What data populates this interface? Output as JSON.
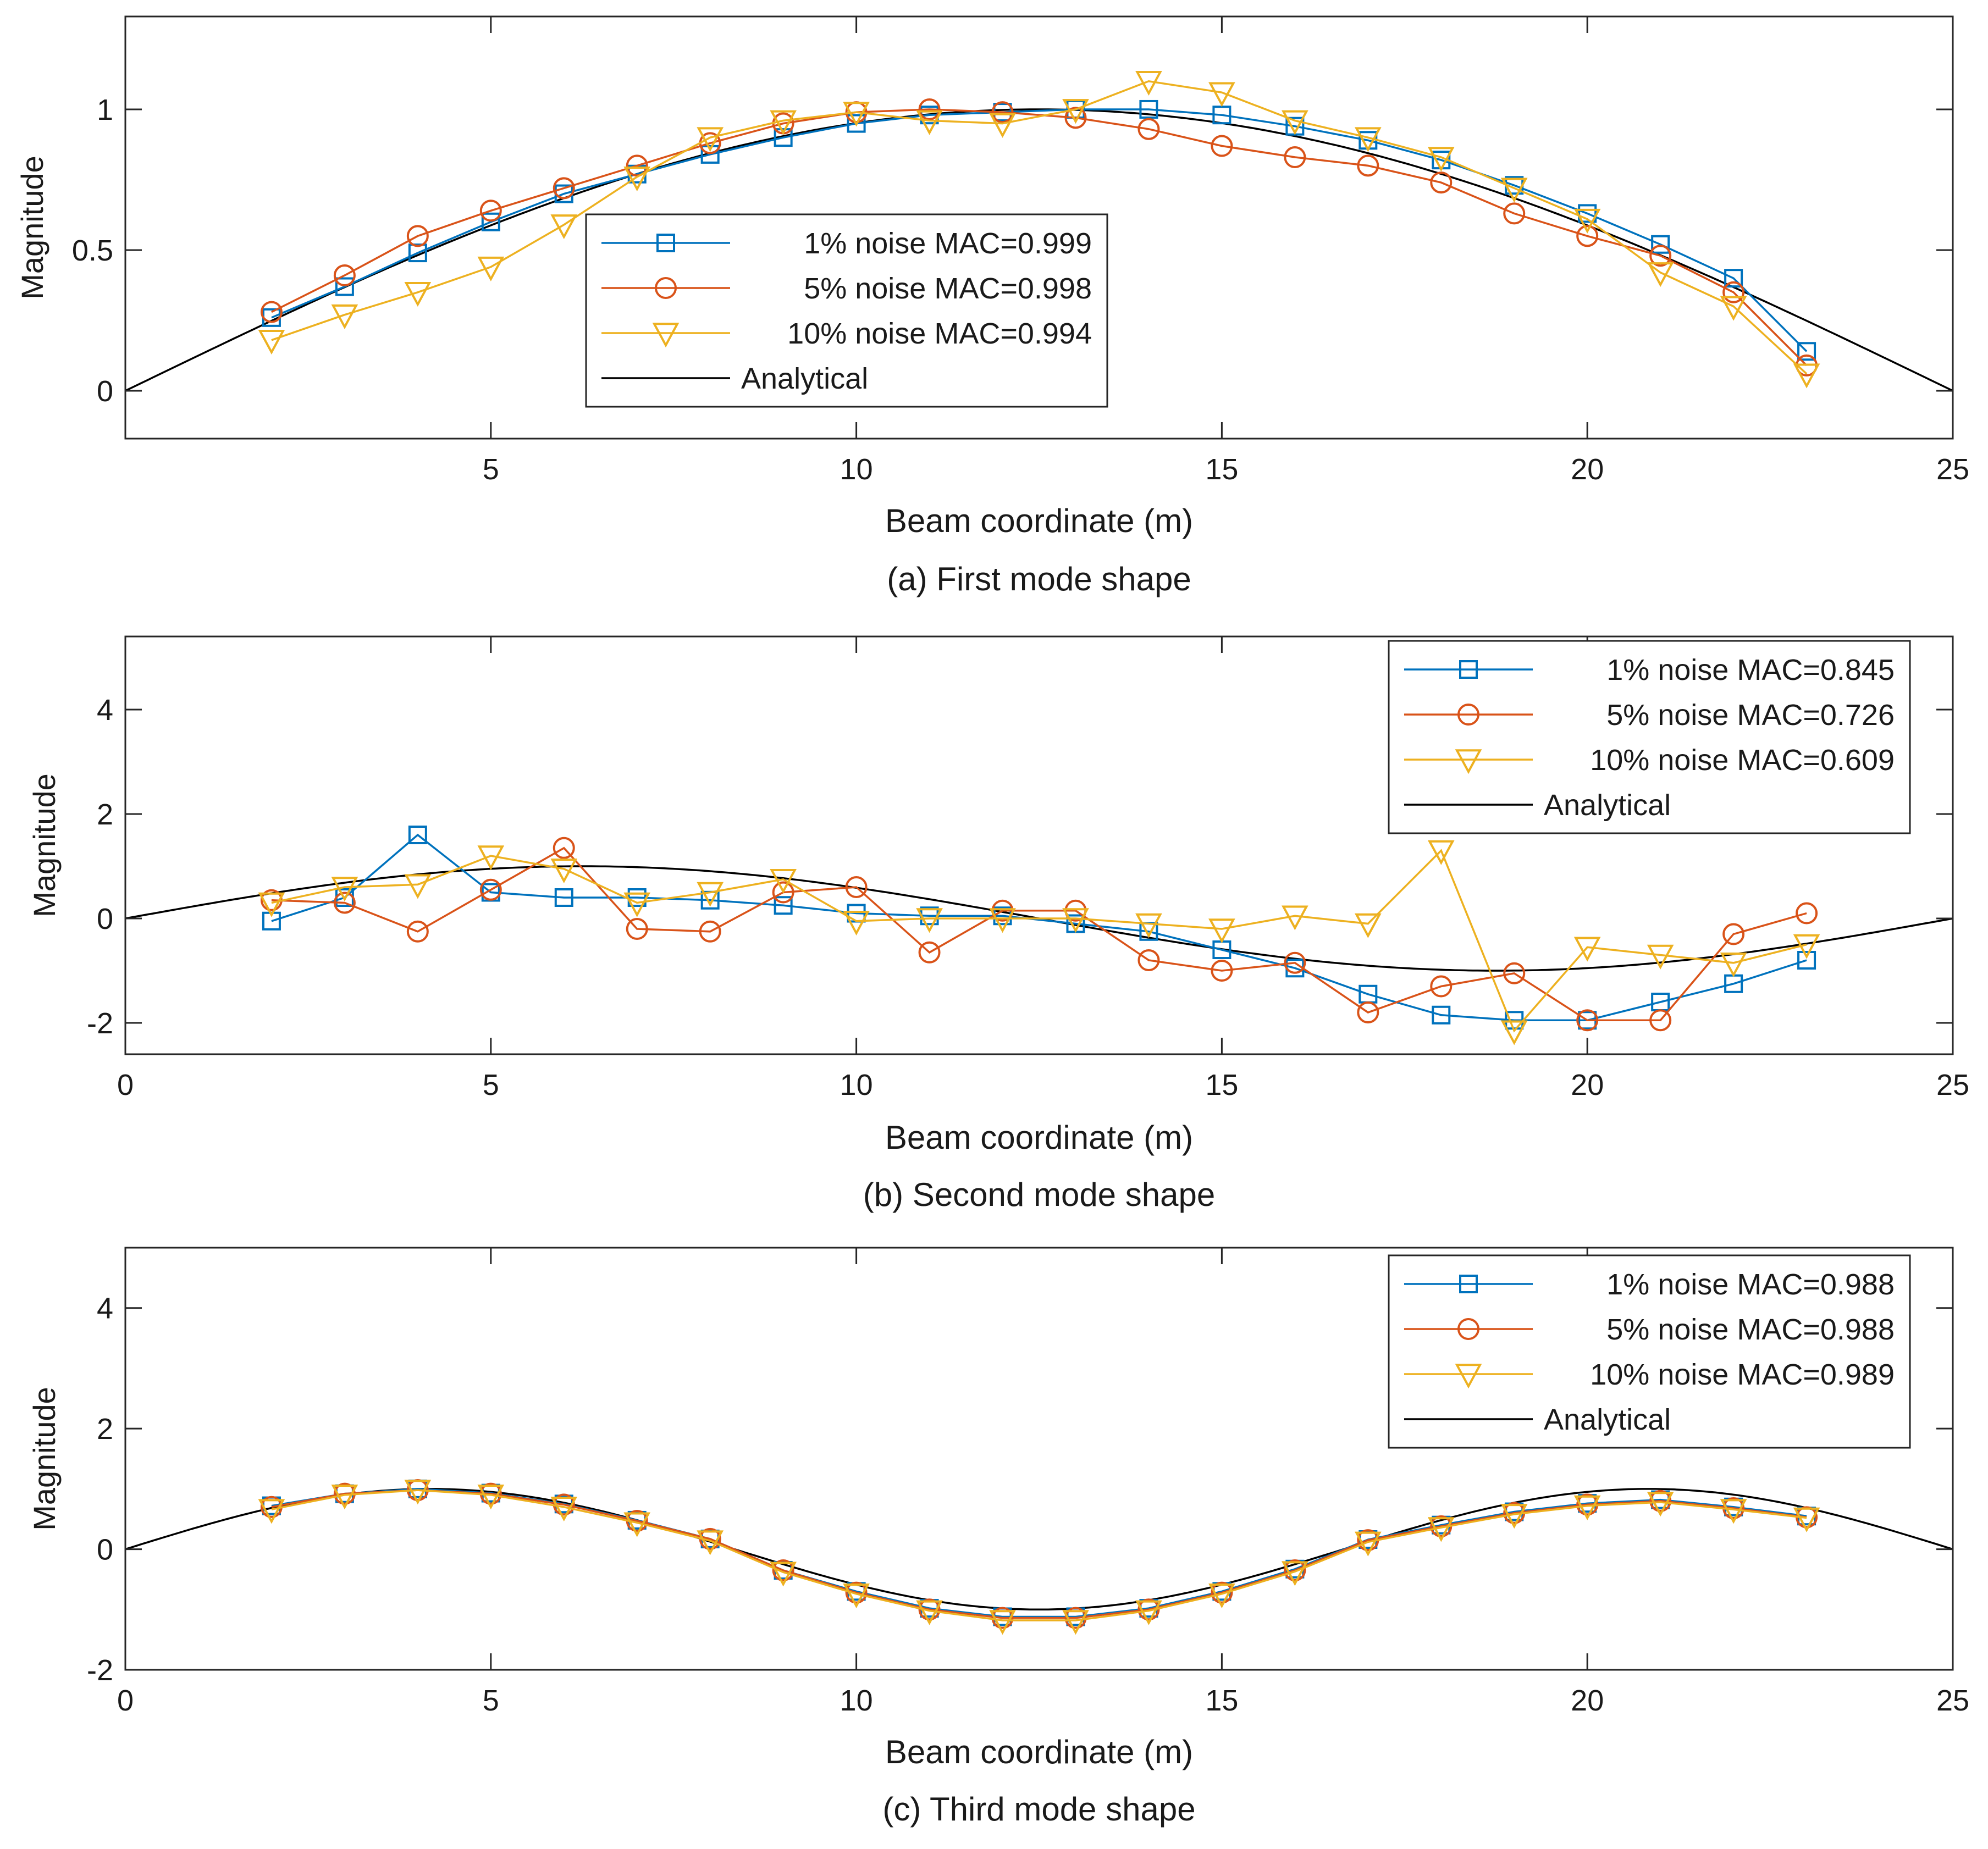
{
  "chart_data": [
    {
      "type": "line",
      "panel": "a",
      "caption": "(a) First mode shape",
      "xlabel": "Beam coordinate (m)",
      "ylabel": "Magnitude",
      "xlim": [
        0,
        25
      ],
      "ylim": [
        -0.17,
        1.33
      ],
      "xticks": [
        5,
        10,
        15,
        20,
        25
      ],
      "xtick_labels": [
        "5",
        "10",
        "15",
        "20",
        "25"
      ],
      "yticks": [
        0,
        0.5,
        1
      ],
      "ytick_labels": [
        "0",
        "0.5",
        "1"
      ],
      "legend_position": "center",
      "x": [
        2,
        3,
        4,
        5,
        6,
        7,
        8,
        9,
        10,
        11,
        12,
        13,
        14,
        15,
        16,
        17,
        18,
        19,
        20,
        21,
        22,
        23
      ],
      "analytical": {
        "name": "Analytical",
        "mode": 1
      },
      "series": [
        {
          "name": "1% noise MAC=0.999",
          "marker": "square",
          "color": "#0072bd",
          "values": [
            0.26,
            0.37,
            0.49,
            0.6,
            0.7,
            0.77,
            0.84,
            0.9,
            0.95,
            0.98,
            0.99,
            1.0,
            1.0,
            0.98,
            0.94,
            0.89,
            0.82,
            0.73,
            0.63,
            0.52,
            0.4,
            0.14
          ]
        },
        {
          "name": "5% noise MAC=0.998",
          "marker": "circle",
          "color": "#d95319",
          "values": [
            0.28,
            0.41,
            0.55,
            0.64,
            0.72,
            0.8,
            0.88,
            0.95,
            0.99,
            1.0,
            0.99,
            0.97,
            0.93,
            0.87,
            0.83,
            0.8,
            0.74,
            0.63,
            0.55,
            0.48,
            0.35,
            0.09
          ]
        },
        {
          "name": "10% noise MAC=0.994",
          "marker": "triangle-down",
          "color": "#edb120",
          "values": [
            0.18,
            0.27,
            0.35,
            0.44,
            0.59,
            0.76,
            0.9,
            0.96,
            0.99,
            0.96,
            0.95,
            1.0,
            1.1,
            1.06,
            0.96,
            0.9,
            0.83,
            0.72,
            0.61,
            0.42,
            0.3,
            0.06
          ]
        }
      ]
    },
    {
      "type": "line",
      "panel": "b",
      "caption": "(b) Second mode shape",
      "xlabel": "Beam coordinate (m)",
      "ylabel": "Magnitude",
      "xlim": [
        0,
        25
      ],
      "ylim": [
        -2.6,
        5.4
      ],
      "xticks": [
        0,
        5,
        10,
        15,
        20,
        25
      ],
      "xtick_labels": [
        "0",
        "5",
        "10",
        "15",
        "20",
        "25"
      ],
      "yticks": [
        -2,
        0,
        2,
        4
      ],
      "ytick_labels": [
        "-2",
        "0",
        "2",
        "4"
      ],
      "legend_position": "top-right",
      "x": [
        2,
        3,
        4,
        5,
        6,
        7,
        8,
        9,
        10,
        11,
        12,
        13,
        14,
        15,
        16,
        17,
        18,
        19,
        20,
        21,
        22,
        23
      ],
      "analytical": {
        "name": "Analytical",
        "mode": 2
      },
      "series": [
        {
          "name": "1% noise MAC=0.845",
          "marker": "square",
          "color": "#0072bd",
          "values": [
            -0.05,
            0.4,
            1.6,
            0.5,
            0.4,
            0.4,
            0.35,
            0.25,
            0.1,
            0.05,
            0.05,
            -0.1,
            -0.25,
            -0.6,
            -0.95,
            -1.45,
            -1.85,
            -1.95,
            -1.95,
            -1.6,
            -1.25,
            -0.8
          ]
        },
        {
          "name": "5% noise MAC=0.726",
          "marker": "circle",
          "color": "#d95319",
          "values": [
            0.35,
            0.3,
            -0.25,
            0.55,
            1.35,
            -0.2,
            -0.25,
            0.5,
            0.6,
            -0.65,
            0.15,
            0.15,
            -0.8,
            -1.0,
            -0.85,
            -1.8,
            -1.3,
            -1.05,
            -1.95,
            -1.95,
            -0.3,
            0.1
          ]
        },
        {
          "name": "10% noise MAC=0.609",
          "marker": "triangle-down",
          "color": "#edb120",
          "values": [
            0.3,
            0.6,
            0.65,
            1.2,
            0.95,
            0.3,
            0.5,
            0.75,
            -0.05,
            0.0,
            0.0,
            0.0,
            -0.1,
            -0.2,
            0.05,
            -0.1,
            1.3,
            -2.15,
            -0.55,
            -0.7,
            -0.85,
            -0.5
          ]
        }
      ]
    },
    {
      "type": "line",
      "panel": "c",
      "caption": "(c) Third mode shape",
      "xlabel": "Beam coordinate (m)",
      "ylabel": "Magnitude",
      "xlim": [
        0,
        25
      ],
      "ylim": [
        -2,
        5
      ],
      "xticks": [
        0,
        5,
        10,
        15,
        20,
        25
      ],
      "xtick_labels": [
        "0",
        "5",
        "10",
        "15",
        "20",
        "25"
      ],
      "yticks": [
        -2,
        0,
        2,
        4
      ],
      "ytick_labels": [
        "-2",
        "0",
        "2",
        "4"
      ],
      "legend_position": "top-right",
      "x": [
        2,
        3,
        4,
        5,
        6,
        7,
        8,
        9,
        10,
        11,
        12,
        13,
        14,
        15,
        16,
        17,
        18,
        19,
        20,
        21,
        22,
        23
      ],
      "analytical": {
        "name": "Analytical",
        "mode": 3
      },
      "series": [
        {
          "name": "1% noise MAC=0.988",
          "marker": "square",
          "color": "#0072bd",
          "values": [
            0.72,
            0.92,
            1.0,
            0.93,
            0.75,
            0.48,
            0.17,
            -0.35,
            -0.7,
            -0.98,
            -1.12,
            -1.12,
            -0.98,
            -0.7,
            -0.33,
            0.16,
            0.4,
            0.62,
            0.76,
            0.82,
            0.7,
            0.55
          ]
        },
        {
          "name": "5% noise MAC=0.988",
          "marker": "circle",
          "color": "#d95319",
          "values": [
            0.7,
            0.92,
            0.98,
            0.92,
            0.74,
            0.47,
            0.17,
            -0.35,
            -0.72,
            -1.0,
            -1.14,
            -1.14,
            -1.0,
            -0.72,
            -0.35,
            0.15,
            0.38,
            0.6,
            0.74,
            0.8,
            0.68,
            0.53
          ]
        },
        {
          "name": "10% noise MAC=0.989",
          "marker": "triangle-down",
          "color": "#edb120",
          "values": [
            0.66,
            0.9,
            0.98,
            0.9,
            0.7,
            0.44,
            0.14,
            -0.38,
            -0.74,
            -1.02,
            -1.18,
            -1.18,
            -1.02,
            -0.74,
            -0.37,
            0.12,
            0.36,
            0.58,
            0.72,
            0.78,
            0.66,
            0.52
          ]
        }
      ]
    }
  ]
}
